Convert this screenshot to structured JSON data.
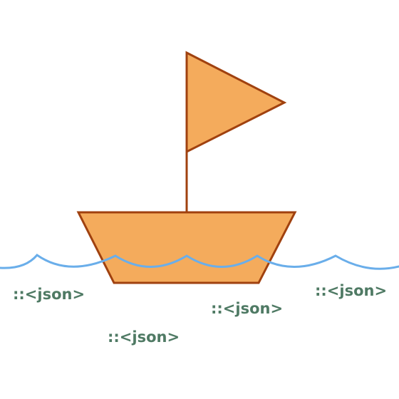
{
  "colors": {
    "fill": "#f4ab5c",
    "stroke": "#a0410f",
    "water": "#6aaeea",
    "label": "#4f7a64",
    "background": "#ffffff"
  },
  "labels": [
    {
      "text": "::<json>"
    },
    {
      "text": "::<json>"
    },
    {
      "text": "::<json>"
    },
    {
      "text": "::<json>"
    }
  ]
}
